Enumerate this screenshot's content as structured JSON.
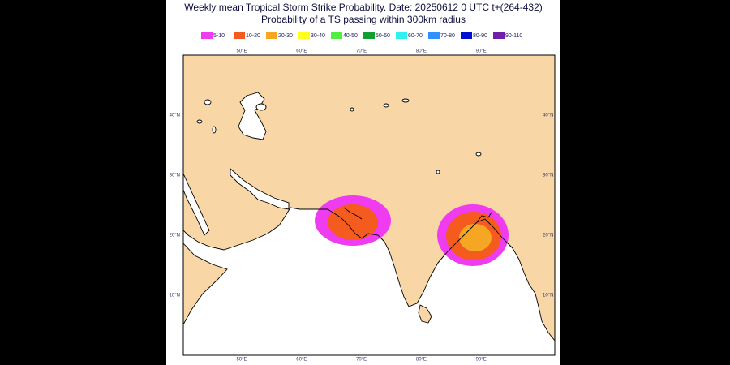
{
  "header": {
    "title": "Weekly mean Tropical Storm Strike Probability. Date: 20250612  0 UTC   t+(264-432)",
    "subtitle": "Probability of a TS passing within  300km radius"
  },
  "legend": {
    "items": [
      {
        "label": "5-10",
        "color": "#f03cf0"
      },
      {
        "label": "10-20",
        "color": "#f55a1e"
      },
      {
        "label": "20-30",
        "color": "#f5a623"
      },
      {
        "label": "30-40",
        "color": "#ffff20"
      },
      {
        "label": "40-50",
        "color": "#50ee40"
      },
      {
        "label": "50-60",
        "color": "#10a030"
      },
      {
        "label": "60-70",
        "color": "#30f0f0"
      },
      {
        "label": "70-80",
        "color": "#3090ff"
      },
      {
        "label": "80-90",
        "color": "#0010d0"
      },
      {
        "label": "90-110",
        "color": "#7020a8"
      }
    ]
  },
  "map": {
    "lon_labels": [
      "50°E",
      "60°E",
      "70°E",
      "80°E",
      "90°E"
    ],
    "lat_labels": [
      "40°N",
      "30°N",
      "20°N",
      "10°N"
    ]
  }
}
